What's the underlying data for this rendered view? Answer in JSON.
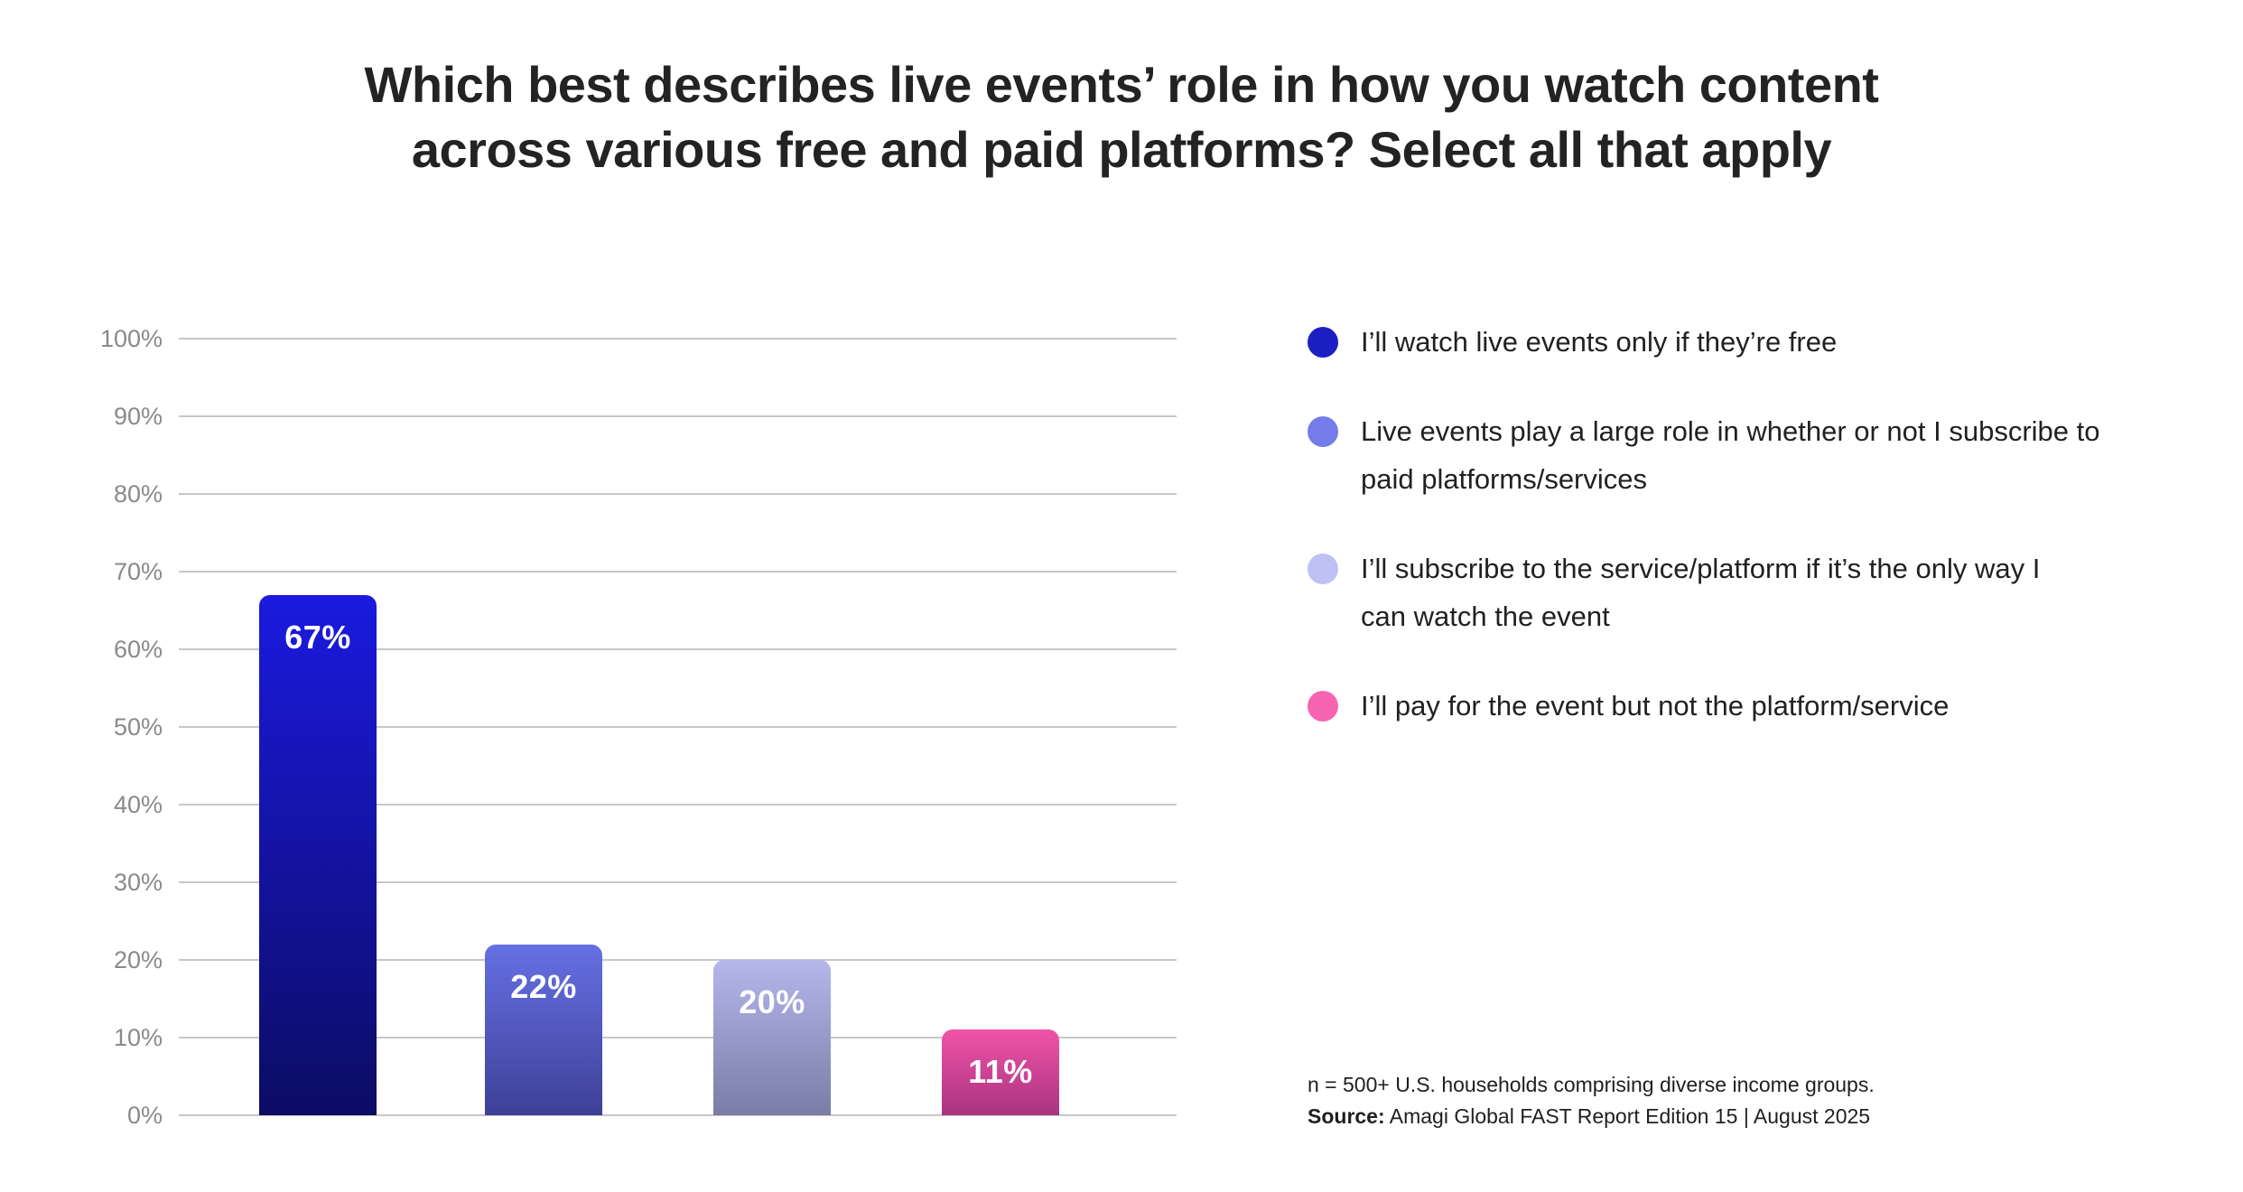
{
  "title": {
    "line1": "Which best describes live events’ role in how you watch content",
    "line2": "across various free and paid platforms? Select all that apply"
  },
  "chart_data": {
    "type": "bar",
    "title": "Which best describes live events’ role in how you watch content across various free and paid platforms? Select all that apply",
    "categories": [
      "I’ll watch live events only if they’re free",
      "Live events play a large role in whether or not I subscribe to paid platforms/services",
      "I’ll subscribe to the service/platform if it’s the only way I can watch the event",
      "I’ll pay for the event but not the platform/service"
    ],
    "values": [
      67,
      22,
      20,
      11
    ],
    "bar_labels": [
      "67%",
      "22%",
      "20%",
      "11%"
    ],
    "unit": "%",
    "xlabel": "",
    "ylabel": "",
    "ylim": [
      0,
      100
    ],
    "yticks": [
      "100%",
      "90%",
      "80%",
      "70%",
      "60%",
      "50%",
      "40%",
      "30%",
      "20%",
      "10%",
      "0%"
    ],
    "grid": true,
    "gridline_color": "#c7c7c7",
    "legend_position": "right",
    "bar_gradients": [
      {
        "top": "#1b1adf",
        "bottom": "#0c0c64"
      },
      {
        "top": "#6670e3",
        "bottom": "#3e4097"
      },
      {
        "top": "#b4b7eb",
        "bottom": "#797da6"
      },
      {
        "top": "#f153a7",
        "bottom": "#a93480"
      }
    ]
  },
  "legend": {
    "items": [
      {
        "color": "#1c20c4",
        "lines": [
          "I’ll watch live events only if they’re free"
        ]
      },
      {
        "color": "#737ce9",
        "lines": [
          "Live events play a large role in whether or not I subscribe to",
          "paid platforms/services"
        ]
      },
      {
        "color": "#bec1f3",
        "lines": [
          "I’ll subscribe to the service/platform if it’s the only way I",
          "can watch the event"
        ]
      },
      {
        "color": "#f765b2",
        "lines": [
          "I’ll pay for the event but not the platform/service"
        ]
      }
    ]
  },
  "source": {
    "note": "n = 500+ U.S. households comprising diverse income groups.",
    "label": "Source:",
    "text": " Amagi Global FAST Report Edition 15 | August 2025"
  }
}
